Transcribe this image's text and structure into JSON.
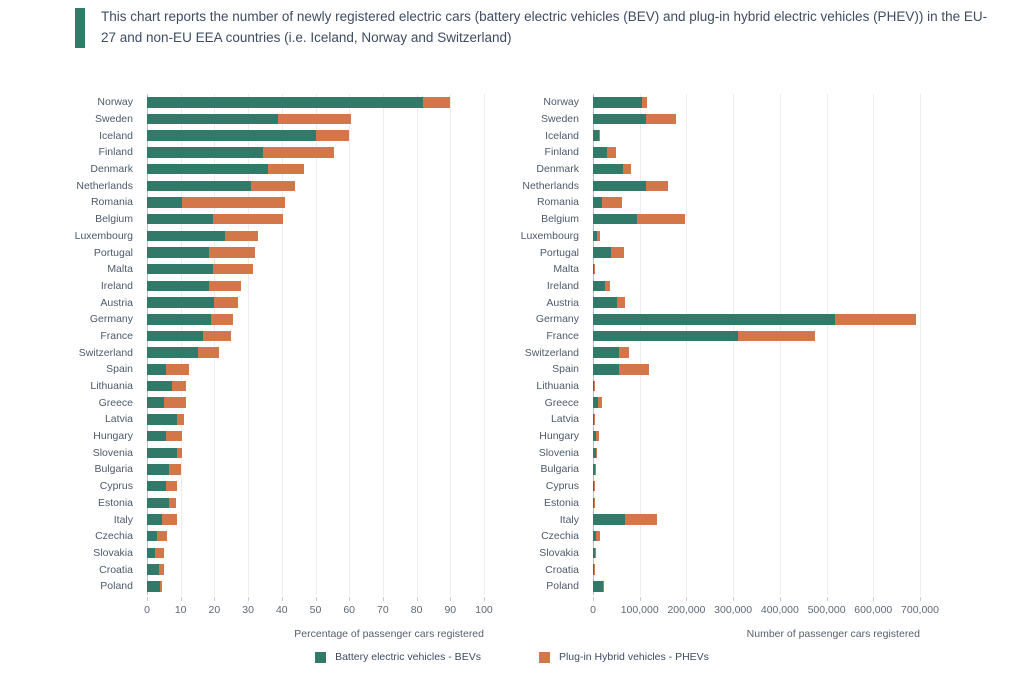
{
  "header": {
    "title": "This chart reports the number of newly registered electric cars (battery electric vehicles (BEV) and plug-in hybrid electric vehicles (PHEV)) in the EU-27 and non-EU EEA countries (i.e. Iceland, Norway and Switzerland)",
    "accent_color": "#2e7d68"
  },
  "legend": {
    "items": [
      {
        "label": "Battery electric vehicles - BEVs",
        "color": "#317a6a",
        "icon": "legend-swatch-square"
      },
      {
        "label": "Plug-in Hybrid vehicles - PHEVs",
        "color": "#d3764a",
        "icon": "legend-swatch-square"
      }
    ]
  },
  "chart_data": [
    {
      "type": "bar",
      "orientation": "horizontal",
      "stacked": true,
      "xlabel": "Percentage of passenger cars registered",
      "xlim": [
        0,
        100
      ],
      "xticks": [
        0,
        10,
        20,
        30,
        40,
        50,
        60,
        70,
        80,
        90,
        100
      ],
      "xtick_labels": [
        "0",
        "10",
        "20",
        "30",
        "40",
        "50",
        "60",
        "70",
        "80",
        "90",
        "100"
      ],
      "grid": true,
      "categories": [
        "Norway",
        "Sweden",
        "Iceland",
        "Finland",
        "Denmark",
        "Netherlands",
        "Romania",
        "Belgium",
        "Luxembourg",
        "Portugal",
        "Malta",
        "Ireland",
        "Austria",
        "Germany",
        "France",
        "Switzerland",
        "Spain",
        "Lithuania",
        "Greece",
        "Latvia",
        "Hungary",
        "Slovenia",
        "Bulgaria",
        "Cyprus",
        "Estonia",
        "Italy",
        "Czechia",
        "Slovakia",
        "Croatia",
        "Poland"
      ],
      "series": [
        {
          "name": "Battery electric vehicles - BEVs",
          "color": "#317a6a",
          "values": [
            82,
            39,
            50,
            34.5,
            36,
            31,
            10.5,
            19.5,
            23,
            18.5,
            19.5,
            18.5,
            20,
            19,
            16.5,
            15,
            5.5,
            7.5,
            5,
            9,
            5.5,
            9,
            6.5,
            5.5,
            6.5,
            4.5,
            3,
            2.5,
            3.5,
            4
          ]
        },
        {
          "name": "Plug-in Hybrid vehicles - PHEVs",
          "color": "#d3764a",
          "values": [
            8,
            21.5,
            10,
            21,
            10.5,
            13,
            30.5,
            21,
            10,
            13.5,
            12,
            9.5,
            7,
            6.5,
            8.5,
            6.5,
            7,
            4,
            6.5,
            2,
            5,
            1.5,
            3.5,
            3.5,
            2,
            4.5,
            3,
            2.5,
            1.5,
            0.5
          ]
        }
      ]
    },
    {
      "type": "bar",
      "orientation": "horizontal",
      "stacked": true,
      "xlabel": "Number of passenger cars registered",
      "xlim": [
        0,
        700000
      ],
      "xticks": [
        0,
        100000,
        200000,
        300000,
        400000,
        500000,
        600000,
        700000
      ],
      "xtick_labels": [
        "0",
        "100,000",
        "200,000",
        "300,000",
        "400,000",
        "500,000",
        "600,000",
        "700,000"
      ],
      "grid": true,
      "categories": [
        "Norway",
        "Sweden",
        "Iceland",
        "Finland",
        "Denmark",
        "Netherlands",
        "Romania",
        "Belgium",
        "Luxembourg",
        "Portugal",
        "Malta",
        "Ireland",
        "Austria",
        "Germany",
        "France",
        "Switzerland",
        "Spain",
        "Lithuania",
        "Greece",
        "Latvia",
        "Hungary",
        "Slovenia",
        "Bulgaria",
        "Cyprus",
        "Estonia",
        "Italy",
        "Czechia",
        "Slovakia",
        "Croatia",
        "Poland"
      ],
      "series": [
        {
          "name": "Battery electric vehicles - BEVs",
          "color": "#317a6a",
          "values": [
            105000,
            113000,
            12000,
            30000,
            64000,
            113000,
            19000,
            94000,
            9000,
            38000,
            2000,
            25000,
            51000,
            519000,
            311000,
            55000,
            56000,
            2500,
            10000,
            2500,
            6500,
            7000,
            3500,
            1500,
            2500,
            68000,
            6500,
            3500,
            3000,
            20500
          ]
        },
        {
          "name": "Plug-in Hybrid vehicles - PHEVs",
          "color": "#d3764a",
          "values": [
            10000,
            65000,
            2500,
            20000,
            17000,
            47000,
            43000,
            102000,
            5500,
            28000,
            2000,
            11000,
            17000,
            172000,
            165000,
            23000,
            64000,
            1500,
            9000,
            1000,
            7000,
            1500,
            1500,
            1000,
            1000,
            68000,
            8000,
            3500,
            2000,
            2000
          ]
        }
      ]
    }
  ]
}
